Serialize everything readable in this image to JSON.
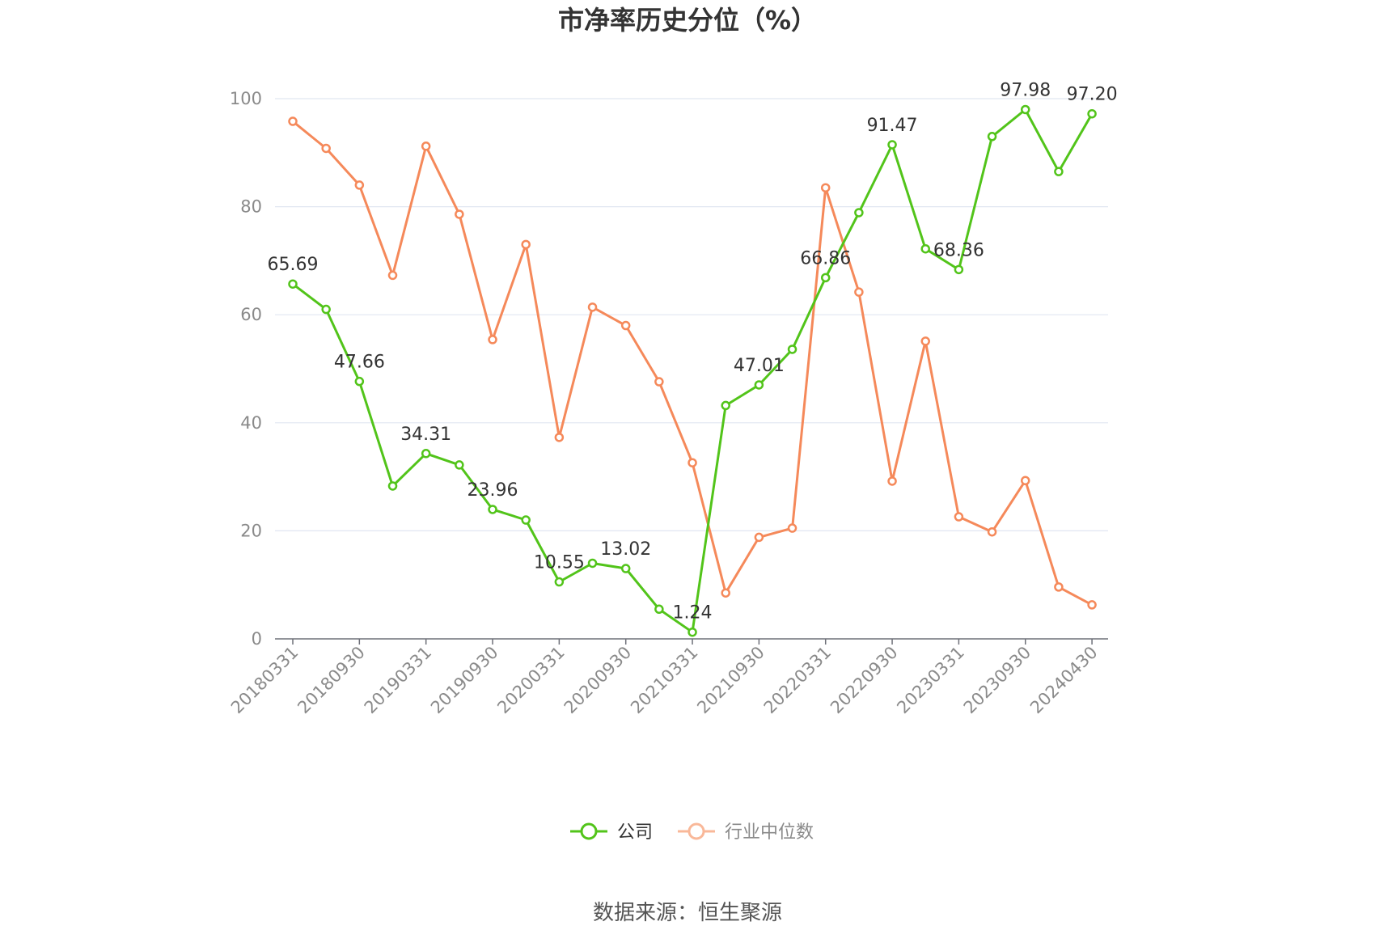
{
  "chart_data": {
    "type": "line",
    "title": "市净率历史分位（%）",
    "source": "数据来源：恒生聚源",
    "ylim": [
      0,
      100
    ],
    "yticks": [
      "0",
      "20",
      "40",
      "60",
      "80",
      "100"
    ],
    "xtick_labels": [
      "20180331",
      "20180930",
      "20190331",
      "20190930",
      "20200331",
      "20200930",
      "20210331",
      "20210930",
      "20220331",
      "20220930",
      "20230331",
      "20230930",
      "20240430"
    ],
    "grid": true,
    "legend_position": "bottom",
    "categories": [
      "20180331",
      "20180630",
      "20180930",
      "20181231",
      "20190331",
      "20190630",
      "20190930",
      "20191231",
      "20200331",
      "20200630",
      "20200930",
      "20201231",
      "20210331",
      "20210630",
      "20210930",
      "20211231",
      "20220331",
      "20220630",
      "20220930",
      "20221231",
      "20230331",
      "20230630",
      "20230930",
      "20231231",
      "20240430"
    ],
    "series": [
      {
        "name": "公司",
        "color": "#52c41a",
        "values": [
          65.69,
          61.0,
          47.66,
          28.3,
          34.31,
          32.2,
          23.96,
          22.0,
          10.55,
          14.0,
          13.02,
          5.5,
          1.24,
          43.2,
          47.01,
          53.6,
          66.86,
          78.9,
          91.47,
          72.2,
          68.36,
          93.0,
          97.98,
          86.5,
          97.2
        ],
        "labels": [
          "65.69",
          "",
          "47.66",
          "",
          "34.31",
          "",
          "23.96",
          "",
          "10.55",
          "",
          "13.02",
          "",
          "1.24",
          "",
          "47.01",
          "",
          "66.86",
          "",
          "91.47",
          "",
          "68.36",
          "",
          "97.98",
          "",
          "97.20"
        ]
      },
      {
        "name": "行业中位数",
        "color": "#f5895a",
        "values": [
          95.8,
          90.8,
          84.0,
          67.3,
          91.2,
          78.6,
          55.4,
          73.0,
          37.3,
          61.4,
          58.0,
          47.6,
          32.6,
          8.5,
          18.8,
          20.5,
          83.5,
          64.2,
          29.2,
          55.1,
          22.6,
          19.8,
          29.3,
          9.6,
          6.3
        ]
      }
    ]
  }
}
